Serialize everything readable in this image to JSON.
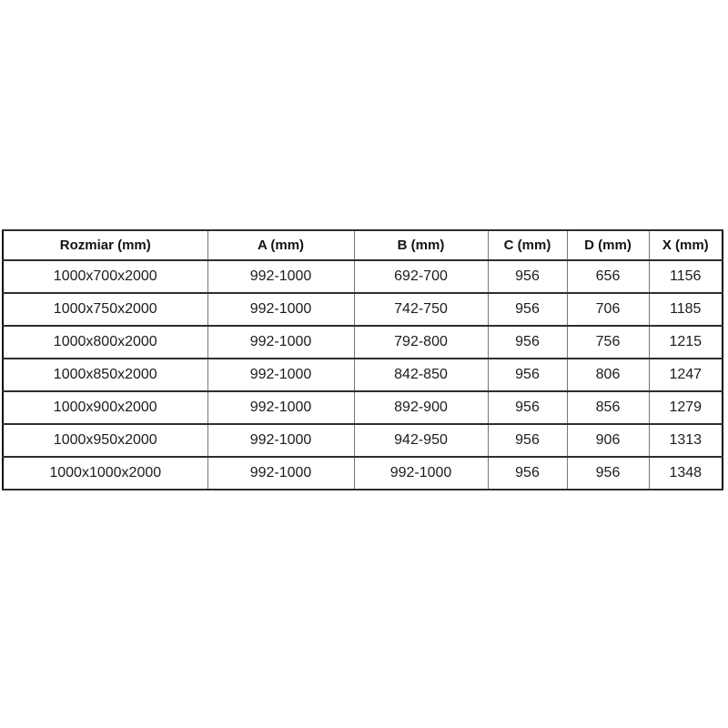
{
  "page": {
    "background_color": "#ffffff",
    "table_border_outer_color": "#000000",
    "table_border_horizontal_color": "#2e2e2e",
    "table_border_vertical_color": "#767676"
  },
  "table": {
    "columns": [
      {
        "label": "Rozmiar (mm)"
      },
      {
        "label": "A (mm)"
      },
      {
        "label": "B (mm)"
      },
      {
        "label": "C (mm)"
      },
      {
        "label": "D (mm)"
      },
      {
        "label": "X (mm)"
      }
    ],
    "rows": [
      {
        "cells": [
          "1000x700x2000",
          "992-1000",
          "692-700",
          "956",
          "656",
          "1156"
        ]
      },
      {
        "cells": [
          "1000x750x2000",
          "992-1000",
          "742-750",
          "956",
          "706",
          "1185"
        ]
      },
      {
        "cells": [
          "1000x800x2000",
          "992-1000",
          "792-800",
          "956",
          "756",
          "1215"
        ]
      },
      {
        "cells": [
          "1000x850x2000",
          "992-1000",
          "842-850",
          "956",
          "806",
          "1247"
        ]
      },
      {
        "cells": [
          "1000x900x2000",
          "992-1000",
          "892-900",
          "956",
          "856",
          "1279"
        ]
      },
      {
        "cells": [
          "1000x950x2000",
          "992-1000",
          "942-950",
          "956",
          "906",
          "1313"
        ]
      },
      {
        "cells": [
          "1000x1000x2000",
          "992-1000",
          "992-1000",
          "956",
          "956",
          "1348"
        ]
      }
    ]
  }
}
